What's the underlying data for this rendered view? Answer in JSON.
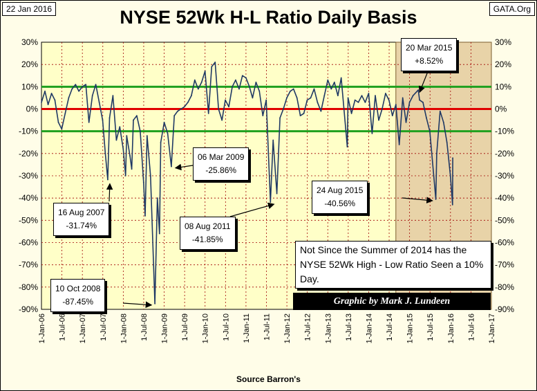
{
  "header": {
    "date": "22 Jan 2016",
    "title": "NYSE 52Wk H-L Ratio Daily Basis",
    "site": "GATA.Org"
  },
  "footer": {
    "source": "Source Barron's"
  },
  "note": {
    "text": "Not Since the Summer of 2014 has the NYSE 52Wk High - Low Ratio Seen a 10% Day."
  },
  "credit": {
    "text": "Graphic by Mark J. Lundeen"
  },
  "callouts": [
    {
      "date": "16 Aug 2007",
      "value": "-31.74%"
    },
    {
      "date": "10 Oct 2008",
      "value": "-87.45%"
    },
    {
      "date": "06 Mar 2009",
      "value": "-25.86%"
    },
    {
      "date": "08 Aug 2011",
      "value": "-41.85%"
    },
    {
      "date": "24 Aug 2015",
      "value": "-40.56%"
    },
    {
      "date": "20 Mar 2015",
      "value": "+8.52%"
    }
  ],
  "colors": {
    "plot_bg": "#ffffc8",
    "highlight_bg": "#e8d3a8",
    "series": "#1f3864",
    "ten_pct_lines": "#1fa01f",
    "zero_line": "#e00000",
    "grid": "#a00000"
  },
  "chart_data": {
    "type": "line",
    "title": "NYSE 52Wk H-L Ratio Daily Basis",
    "xlabel": "Source Barron's",
    "ylabel": "",
    "ylim": [
      -90,
      30
    ],
    "y_ticks": [
      "30%",
      "20%",
      "10%",
      "0%",
      "-10%",
      "-20%",
      "-30%",
      "-40%",
      "-50%",
      "-60%",
      "-70%",
      "-80%",
      "-90%"
    ],
    "x_ticks": [
      "1-Jan-06",
      "1-Jul-06",
      "1-Jan-07",
      "1-Jul-07",
      "1-Jan-08",
      "1-Jul-08",
      "1-Jan-09",
      "1-Jul-09",
      "1-Jan-10",
      "1-Jul-10",
      "1-Jan-11",
      "1-Jul-11",
      "1-Jan-12",
      "1-Jul-12",
      "1-Jan-13",
      "1-Jul-13",
      "1-Jan-14",
      "1-Jul-14",
      "1-Jan-15",
      "1-Jul-15",
      "1-Jan-16",
      "1-Jul-16",
      "1-Jan-17"
    ],
    "x_range": [
      "2006-01-01",
      "2017-01-01"
    ],
    "reference_lines": [
      10,
      0,
      -10
    ],
    "shaded_region": [
      "2014-09-01",
      "2017-01-01"
    ],
    "grid": true,
    "series": [
      {
        "values": [
          [
            "2006-01-01",
            3
          ],
          [
            "2006-02-01",
            8
          ],
          [
            "2006-03-01",
            2
          ],
          [
            "2006-04-01",
            7
          ],
          [
            "2006-05-01",
            4
          ],
          [
            "2006-06-01",
            -6
          ],
          [
            "2006-07-01",
            -9
          ],
          [
            "2006-08-01",
            -2
          ],
          [
            "2006-09-01",
            5
          ],
          [
            "2006-10-01",
            9
          ],
          [
            "2006-11-01",
            11
          ],
          [
            "2006-12-01",
            8
          ],
          [
            "2007-01-01",
            10
          ],
          [
            "2007-02-01",
            11
          ],
          [
            "2007-03-01",
            -6
          ],
          [
            "2007-04-01",
            6
          ],
          [
            "2007-05-01",
            11
          ],
          [
            "2007-06-01",
            3
          ],
          [
            "2007-07-01",
            -5
          ],
          [
            "2007-07-25",
            -20
          ],
          [
            "2007-08-16",
            -31.74
          ],
          [
            "2007-09-01",
            -4
          ],
          [
            "2007-10-01",
            6
          ],
          [
            "2007-11-01",
            -14
          ],
          [
            "2007-12-01",
            -8
          ],
          [
            "2008-01-01",
            -18
          ],
          [
            "2008-01-22",
            -30
          ],
          [
            "2008-02-01",
            -12
          ],
          [
            "2008-03-01",
            -21
          ],
          [
            "2008-03-17",
            -27
          ],
          [
            "2008-04-01",
            -5
          ],
          [
            "2008-05-01",
            -3
          ],
          [
            "2008-06-01",
            -10
          ],
          [
            "2008-07-01",
            -33
          ],
          [
            "2008-07-15",
            -48
          ],
          [
            "2008-08-01",
            -12
          ],
          [
            "2008-09-01",
            -30
          ],
          [
            "2008-10-10",
            -87.45
          ],
          [
            "2008-11-01",
            -40
          ],
          [
            "2008-11-20",
            -56
          ],
          [
            "2008-12-01",
            -15
          ],
          [
            "2009-01-01",
            -6
          ],
          [
            "2009-02-01",
            -11
          ],
          [
            "2009-03-06",
            -25.86
          ],
          [
            "2009-04-01",
            -3
          ],
          [
            "2009-05-01",
            -1
          ],
          [
            "2009-06-01",
            0
          ],
          [
            "2009-07-01",
            1
          ],
          [
            "2009-08-01",
            3
          ],
          [
            "2009-09-01",
            6
          ],
          [
            "2009-10-01",
            13
          ],
          [
            "2009-11-01",
            9
          ],
          [
            "2009-12-01",
            12
          ],
          [
            "2010-01-01",
            17
          ],
          [
            "2010-02-01",
            -2
          ],
          [
            "2010-03-01",
            19
          ],
          [
            "2010-04-01",
            21
          ],
          [
            "2010-05-01",
            0
          ],
          [
            "2010-06-01",
            -5
          ],
          [
            "2010-07-01",
            4
          ],
          [
            "2010-08-01",
            1
          ],
          [
            "2010-09-01",
            10
          ],
          [
            "2010-10-01",
            13
          ],
          [
            "2010-11-01",
            9
          ],
          [
            "2010-12-01",
            15
          ],
          [
            "2011-01-01",
            14
          ],
          [
            "2011-02-01",
            10
          ],
          [
            "2011-03-01",
            5
          ],
          [
            "2011-04-01",
            12
          ],
          [
            "2011-05-01",
            8
          ],
          [
            "2011-06-01",
            -3
          ],
          [
            "2011-07-01",
            4
          ],
          [
            "2011-08-08",
            -41.85
          ],
          [
            "2011-09-01",
            -14
          ],
          [
            "2011-10-04",
            -38
          ],
          [
            "2011-11-01",
            -4
          ],
          [
            "2011-12-01",
            0
          ],
          [
            "2012-01-01",
            5
          ],
          [
            "2012-02-01",
            8
          ],
          [
            "2012-03-01",
            9
          ],
          [
            "2012-04-01",
            5
          ],
          [
            "2012-05-01",
            -3
          ],
          [
            "2012-06-01",
            -2
          ],
          [
            "2012-07-01",
            4
          ],
          [
            "2012-08-01",
            5
          ],
          [
            "2012-09-01",
            9
          ],
          [
            "2012-10-01",
            3
          ],
          [
            "2012-11-01",
            -1
          ],
          [
            "2012-12-01",
            6
          ],
          [
            "2013-01-01",
            13
          ],
          [
            "2013-02-01",
            9
          ],
          [
            "2013-03-01",
            12
          ],
          [
            "2013-04-01",
            6
          ],
          [
            "2013-05-01",
            14
          ],
          [
            "2013-06-24",
            -17
          ],
          [
            "2013-07-01",
            5
          ],
          [
            "2013-08-01",
            -2
          ],
          [
            "2013-09-01",
            4
          ],
          [
            "2013-10-01",
            3
          ],
          [
            "2013-11-01",
            6
          ],
          [
            "2013-12-01",
            3
          ],
          [
            "2014-01-01",
            7
          ],
          [
            "2014-02-01",
            -11
          ],
          [
            "2014-03-01",
            6
          ],
          [
            "2014-04-01",
            -5
          ],
          [
            "2014-05-01",
            0
          ],
          [
            "2014-06-01",
            7
          ],
          [
            "2014-07-01",
            4
          ],
          [
            "2014-08-01",
            -3
          ],
          [
            "2014-09-01",
            2
          ],
          [
            "2014-10-01",
            -16
          ],
          [
            "2014-11-01",
            5
          ],
          [
            "2014-12-01",
            -6
          ],
          [
            "2015-01-01",
            3
          ],
          [
            "2015-02-01",
            6
          ],
          [
            "2015-03-20",
            8.52
          ],
          [
            "2015-04-01",
            4
          ],
          [
            "2015-05-01",
            3
          ],
          [
            "2015-06-01",
            -4
          ],
          [
            "2015-07-01",
            -10
          ],
          [
            "2015-08-24",
            -40.56
          ],
          [
            "2015-09-01",
            -20
          ],
          [
            "2015-10-01",
            -1
          ],
          [
            "2015-11-01",
            -6
          ],
          [
            "2015-12-01",
            -15
          ],
          [
            "2016-01-01",
            -30
          ],
          [
            "2016-01-20",
            -43
          ],
          [
            "2016-01-22",
            -22
          ]
        ]
      }
    ]
  }
}
